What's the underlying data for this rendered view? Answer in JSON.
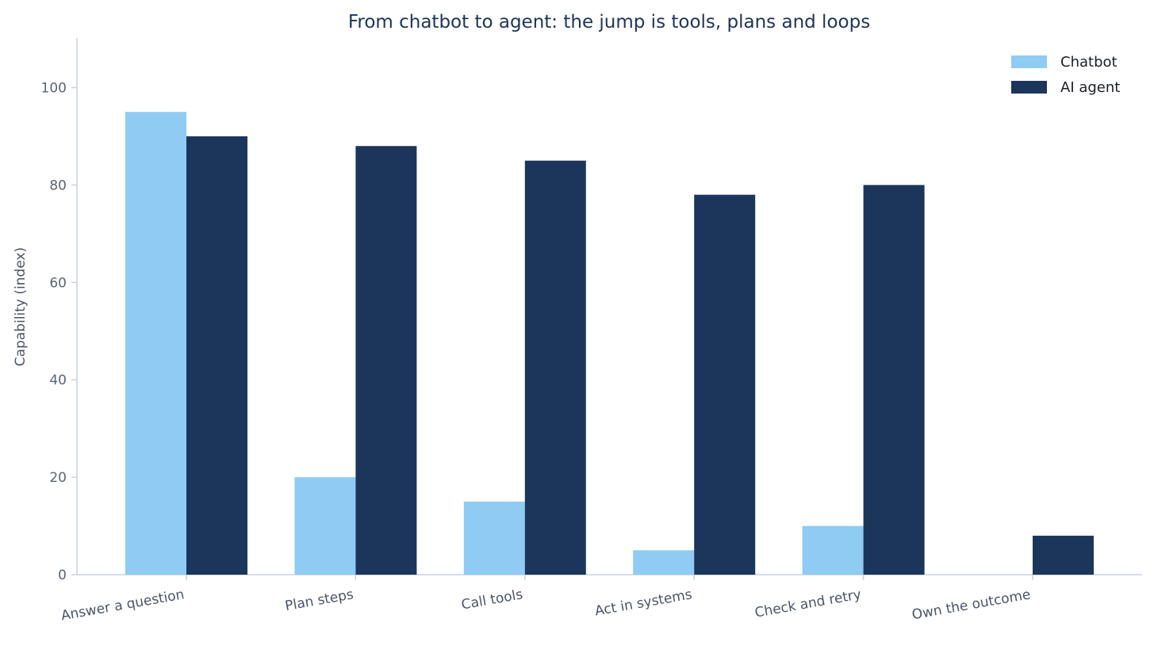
{
  "chart_data": {
    "type": "bar",
    "title": "From chatbot to agent: the jump is tools, plans and loops",
    "xlabel": "",
    "ylabel": "Capability (index)",
    "categories": [
      "Answer a question",
      "Plan steps",
      "Call tools",
      "Act in systems",
      "Check and retry",
      "Own the outcome"
    ],
    "series": [
      {
        "name": "Chatbot",
        "color": "#8fcbf3",
        "values": [
          95,
          20,
          15,
          5,
          10,
          0
        ]
      },
      {
        "name": "AI agent",
        "color": "#1c355b",
        "values": [
          90,
          88,
          85,
          78,
          80,
          8
        ]
      }
    ],
    "ylim": [
      0,
      110
    ],
    "yticks": [
      0,
      20,
      40,
      60,
      80,
      100
    ],
    "grid": false,
    "legend_position": "top-right"
  }
}
